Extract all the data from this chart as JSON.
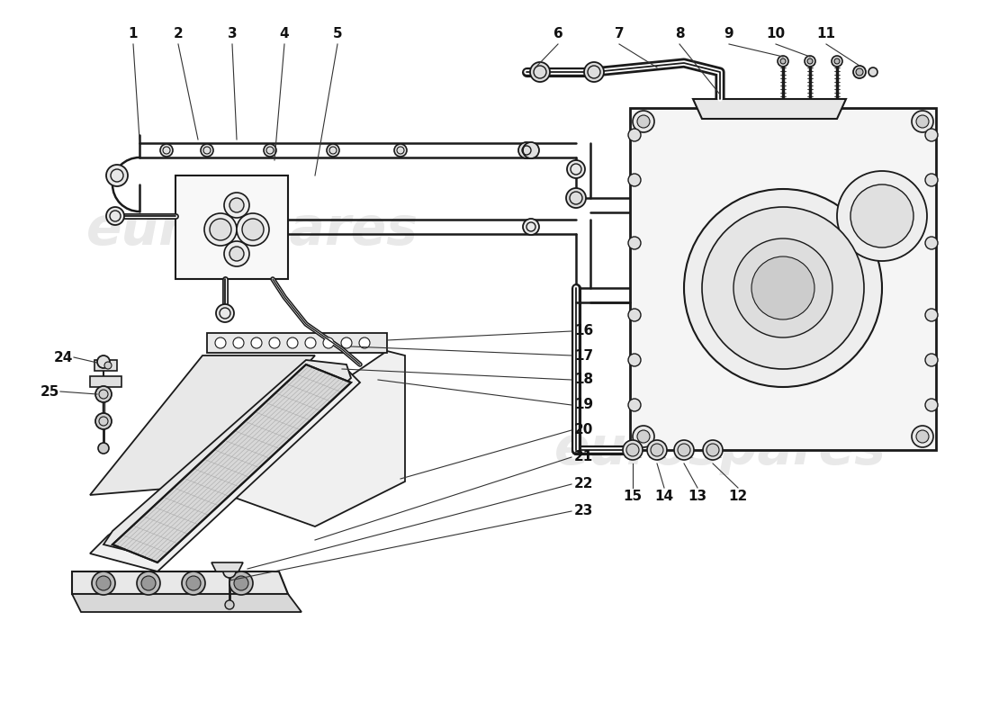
{
  "bg_color": "#ffffff",
  "line_color": "#1a1a1a",
  "watermark_color": "#c0c0c0",
  "fig_width": 11.0,
  "fig_height": 8.0,
  "top_labels": [
    [
      "1",
      148,
      748
    ],
    [
      "2",
      198,
      748
    ],
    [
      "3",
      258,
      748
    ],
    [
      "4",
      316,
      748
    ],
    [
      "5",
      375,
      748
    ],
    [
      "6",
      620,
      748
    ],
    [
      "7",
      688,
      748
    ],
    [
      "8",
      755,
      748
    ],
    [
      "9",
      810,
      748
    ],
    [
      "10",
      862,
      748
    ],
    [
      "11",
      918,
      748
    ]
  ],
  "left_labels": [
    [
      "24",
      70,
      390
    ],
    [
      "25",
      55,
      362
    ]
  ],
  "right_labels_cooler": [
    [
      "16",
      638,
      430
    ],
    [
      "17",
      638,
      402
    ],
    [
      "18",
      638,
      374
    ],
    [
      "19",
      638,
      346
    ],
    [
      "20",
      638,
      318
    ],
    [
      "21",
      638,
      288
    ],
    [
      "22",
      638,
      258
    ],
    [
      "23",
      638,
      228
    ]
  ],
  "bottom_labels_engine": [
    [
      "15",
      703,
      222
    ],
    [
      "14",
      738,
      222
    ],
    [
      "13",
      775,
      222
    ],
    [
      "12",
      820,
      222
    ]
  ]
}
